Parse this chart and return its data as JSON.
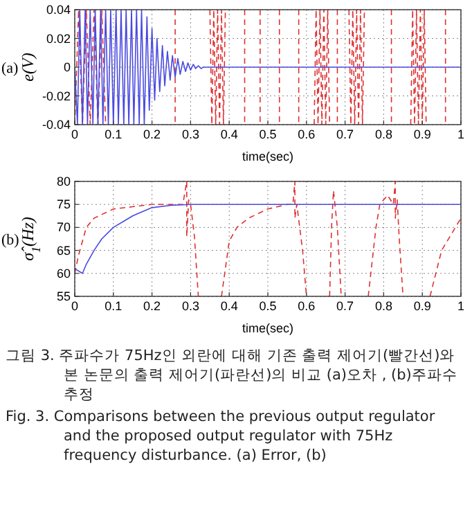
{
  "chart_data": [
    {
      "type": "line",
      "xlabel": "time(sec)",
      "ylabel": "e(V)",
      "annotations": [
        "(a)"
      ],
      "xlim": [
        0,
        1
      ],
      "xticks": [
        0,
        0.1,
        0.2,
        0.3,
        0.4,
        0.5,
        0.6,
        0.7,
        0.8,
        0.9,
        1
      ],
      "ylim": [
        -0.04,
        0.04
      ],
      "yticks": [
        -0.04,
        -0.02,
        0,
        0.02,
        0.04
      ],
      "grid": true,
      "series": [
        {
          "color": "#e03030",
          "line_style": "dashed",
          "x": [
            0,
            0.01,
            0.02,
            0.03,
            0.04,
            0.05,
            0.06,
            0.07,
            0.08,
            0.17,
            0.26,
            0.26,
            0.3,
            0.35,
            0.355,
            0.36,
            0.365,
            0.37,
            0.375,
            0.38,
            0.385,
            0.39,
            0.415,
            0.44,
            0.44,
            0.46,
            0.48,
            0.48,
            0.5,
            0.53,
            0.53,
            0.55,
            0.58,
            0.58,
            0.6,
            0.62,
            0.625,
            0.63,
            0.635,
            0.64,
            0.645,
            0.65,
            0.655,
            0.66,
            0.67,
            0.68,
            0.68,
            0.69,
            0.71,
            0.715,
            0.72,
            0.725,
            0.73,
            0.735,
            0.74,
            0.745,
            0.75,
            0.78,
            0.82,
            0.82,
            0.85,
            0.87,
            0.875,
            0.88,
            0.885,
            0.89,
            0.895,
            0.9,
            0.905,
            0.91,
            0.93,
            0.96,
            0.96
          ],
          "values": [
            -0.04,
            0.04,
            -0.04,
            0.04,
            -0.04,
            0.04,
            -0.04,
            0.04,
            -0.04,
            null,
            0.04,
            -0.04,
            null,
            0.04,
            -0.04,
            0.04,
            -0.04,
            0.04,
            -0.04,
            0.04,
            -0.04,
            0.04,
            null,
            0.04,
            -0.04,
            null,
            0.04,
            -0.04,
            null,
            0.04,
            -0.04,
            null,
            0.04,
            -0.04,
            null,
            -0.04,
            0.04,
            -0.04,
            0.04,
            -0.04,
            0.04,
            -0.04,
            0.04,
            -0.04,
            null,
            0.04,
            -0.04,
            null,
            0.04,
            -0.04,
            0.04,
            -0.04,
            0.04,
            -0.04,
            0.04,
            -0.04,
            0.04,
            null,
            0.04,
            -0.04,
            null,
            -0.04,
            0.04,
            -0.04,
            0.04,
            -0.04,
            0.04,
            -0.04,
            0.04,
            -0.04,
            null,
            0.04,
            -0.04
          ]
        },
        {
          "color": "#4a4ae0",
          "line_style": "solid",
          "x": [
            0,
            0.007,
            0.013,
            0.02,
            0.027,
            0.033,
            0.04,
            0.047,
            0.053,
            0.06,
            0.067,
            0.073,
            0.08,
            0.087,
            0.093,
            0.1,
            0.107,
            0.113,
            0.12,
            0.127,
            0.133,
            0.14,
            0.147,
            0.153,
            0.16,
            0.167,
            0.173,
            0.18,
            0.187,
            0.193,
            0.2,
            0.207,
            0.213,
            0.22,
            0.227,
            0.233,
            0.24,
            0.247,
            0.253,
            0.26,
            0.267,
            0.273,
            0.28,
            0.287,
            0.293,
            0.3,
            0.307,
            0.313,
            0.32,
            0.327,
            0.333,
            0.34,
            0.347,
            0.353,
            0.36,
            0.367,
            0.373,
            0.38,
            0.387,
            0.393,
            0.4,
            1
          ],
          "values": [
            0,
            -0.04,
            0.04,
            -0.04,
            0.04,
            -0.04,
            0.04,
            -0.04,
            0.04,
            -0.04,
            0.04,
            -0.04,
            0.04,
            -0.04,
            0.04,
            -0.04,
            0.04,
            -0.04,
            0.04,
            -0.04,
            0.04,
            -0.04,
            0.04,
            -0.04,
            0.04,
            -0.04,
            0.04,
            -0.04,
            0.035,
            -0.03,
            0.027,
            -0.023,
            0.02,
            -0.017,
            0.015,
            -0.013,
            0.011,
            -0.009,
            0.008,
            -0.007,
            0.006,
            -0.005,
            0.004,
            -0.003,
            0.003,
            -0.002,
            0.002,
            -0.001,
            0.001,
            -0.001,
            0,
            0,
            0,
            0,
            0,
            0,
            0,
            0,
            0,
            0,
            0,
            0
          ]
        }
      ]
    },
    {
      "type": "line",
      "xlabel": "time(sec)",
      "ylabel": "σ̂$_{1}$(Hz)",
      "annotations": [
        "(b)",
        "그림 3.  주파수가 75Hz인 외란에 대해 기존 출력 제어기(빨간선)와 본 논문의 출력 제어기(파란선)의 비교 (a)오차 , (b)주파수 추정",
        "Fig. 3.  Comparisons between the previous output regulator and the proposed output regulator with 75Hz frequency disturbance. (a) Error, (b)"
      ],
      "xlim": [
        0,
        1
      ],
      "xticks": [
        0,
        0.1,
        0.2,
        0.3,
        0.4,
        0.5,
        0.6,
        0.7,
        0.8,
        0.9,
        1
      ],
      "ylim": [
        55,
        80
      ],
      "yticks": [
        55,
        60,
        65,
        70,
        75,
        80
      ],
      "grid": true,
      "series": [
        {
          "color": "#e03030",
          "line_style": "dashed",
          "x": [
            0,
            0.01,
            0.02,
            0.03,
            0.05,
            0.1,
            0.15,
            0.2,
            0.25,
            0.28,
            0.29,
            0.29,
            0.295,
            0.3,
            0.31,
            0.32,
            0.33,
            0.38,
            0.4,
            0.42,
            0.45,
            0.5,
            0.55,
            0.565,
            0.57,
            0.57,
            0.575,
            0.59,
            0.6,
            0.61,
            0.66,
            0.665,
            0.67,
            0.68,
            0.69,
            0.695,
            0.76,
            0.78,
            0.79,
            0.8,
            0.81,
            0.825,
            0.83,
            0.83,
            0.835,
            0.84,
            0.85,
            0.86,
            0.92,
            0.95,
            1
          ],
          "values": [
            60,
            64,
            67,
            70,
            72,
            74,
            74.5,
            75,
            75,
            75,
            80,
            68,
            76,
            75,
            68,
            55,
            null,
            55,
            67,
            70,
            72,
            74,
            75,
            75,
            80,
            72,
            75,
            65,
            55,
            null,
            55,
            70,
            78,
            70,
            55,
            null,
            55,
            70,
            75,
            76,
            77,
            75,
            80,
            72,
            76,
            68,
            55,
            null,
            55,
            65,
            72
          ]
        },
        {
          "color": "#4a4ae0",
          "line_style": "solid",
          "x": [
            0,
            0.02,
            0.03,
            0.05,
            0.07,
            0.1,
            0.13,
            0.15,
            0.2,
            0.25,
            0.3,
            1
          ],
          "values": [
            61,
            60,
            62,
            65,
            67.5,
            70,
            71.5,
            72.5,
            74.3,
            74.8,
            75,
            75
          ]
        }
      ]
    }
  ]
}
